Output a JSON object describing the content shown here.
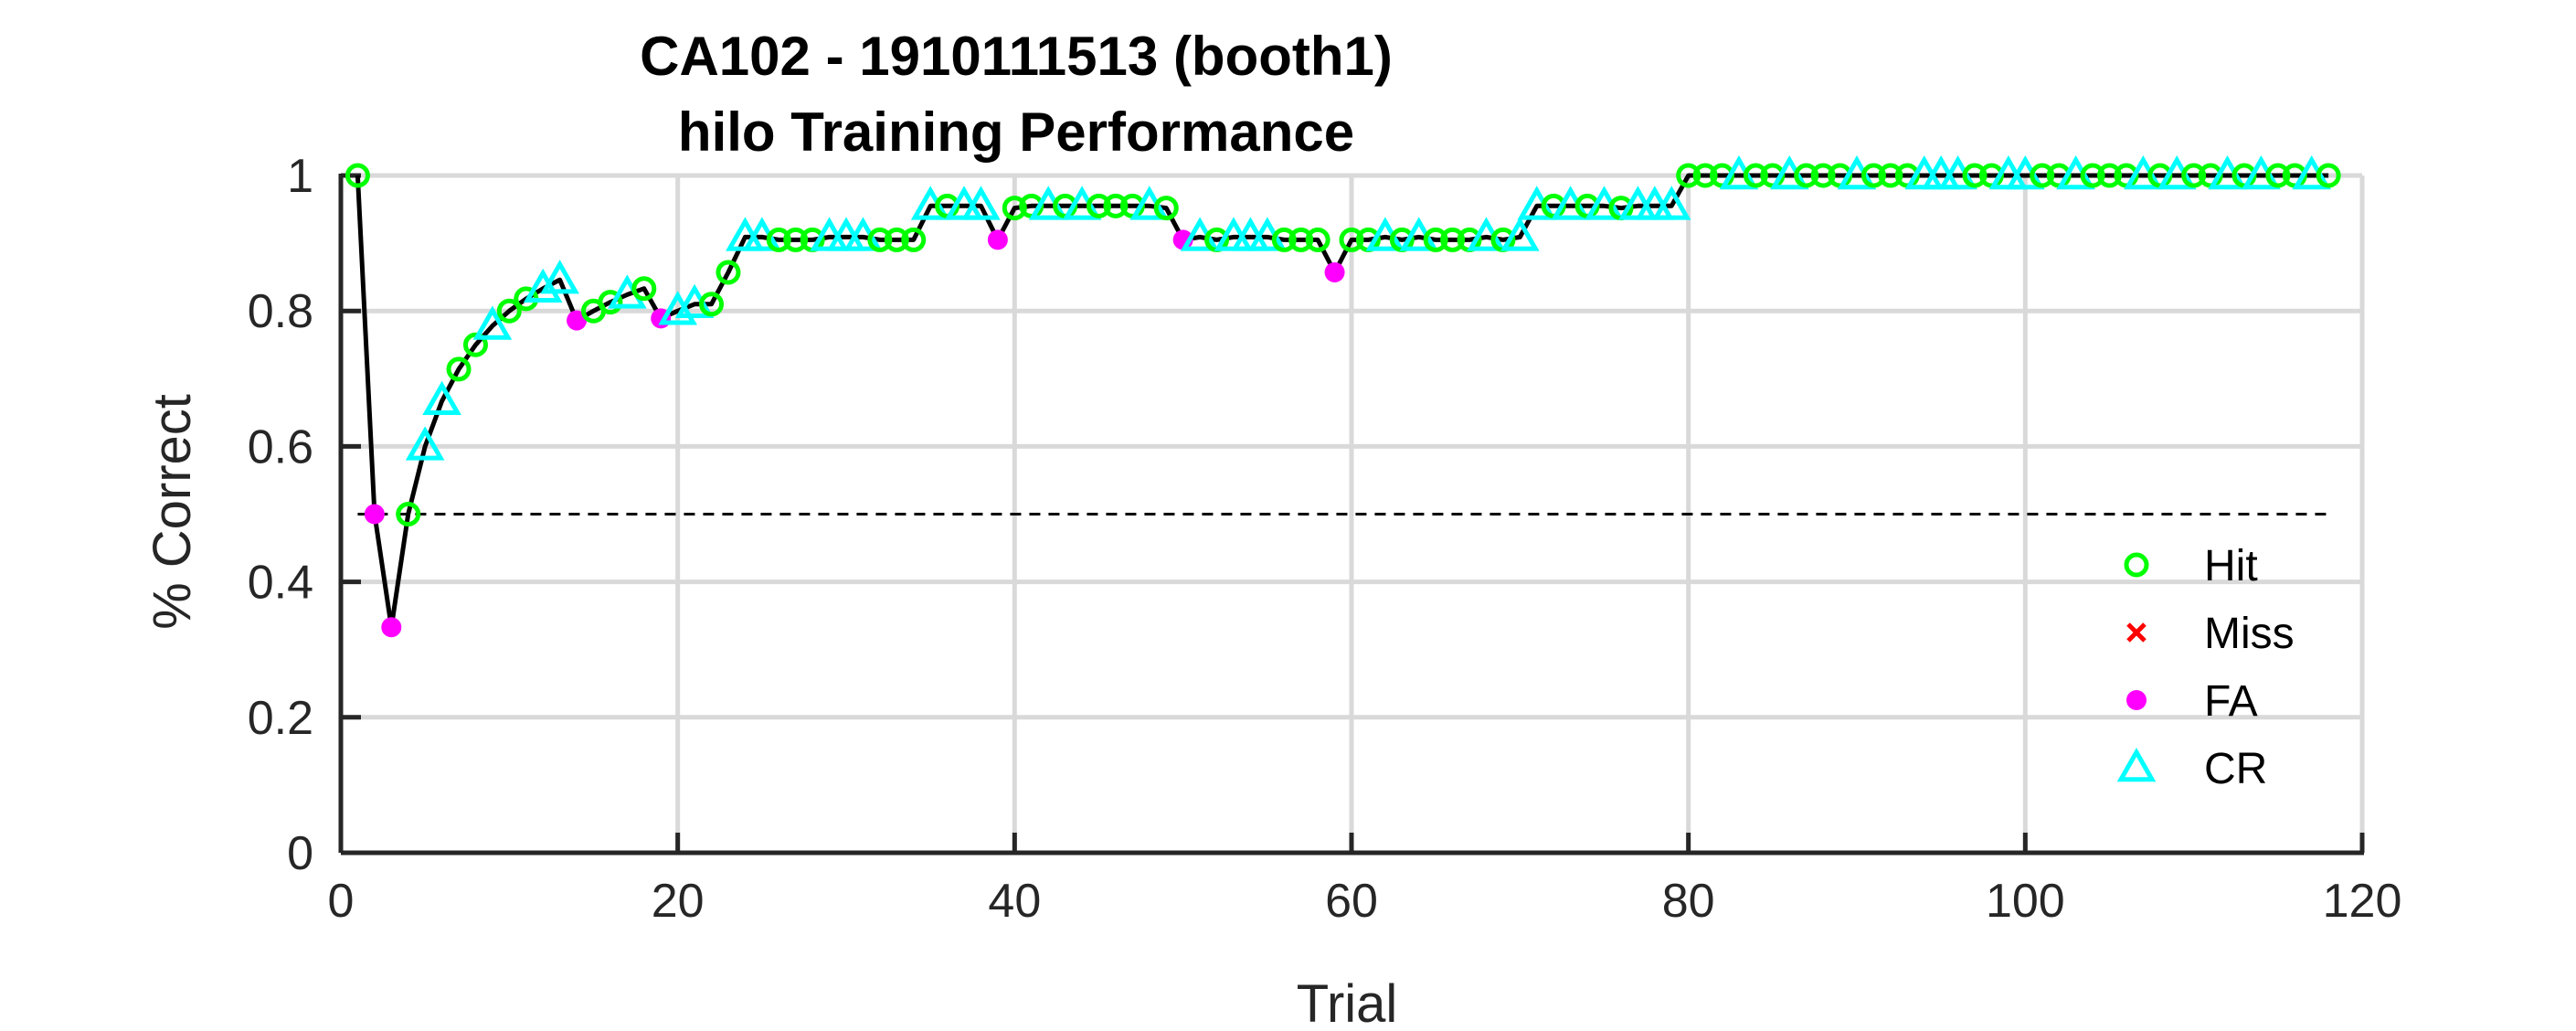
{
  "chart_data": {
    "type": "line",
    "title": "CA102 - 1910111513 (booth1)",
    "subtitle": "hilo Training Performance",
    "xlabel": "Trial",
    "ylabel": "% Correct",
    "xlim": [
      0,
      120
    ],
    "ylim": [
      0,
      1
    ],
    "xticks": [
      "0",
      "20",
      "40",
      "60",
      "80",
      "100",
      "120"
    ],
    "yticks": [
      "0",
      "0.2",
      "0.4",
      "0.6",
      "0.8",
      "1"
    ],
    "grid": true,
    "legend_position": "bottom-right",
    "chance_level": 0.5,
    "colors": {
      "line": "#000000",
      "hit": "#00ff00",
      "miss": "#ff0000",
      "fa": "#ff00ff",
      "cr": "#00ffff",
      "grid": "#d9d9d9",
      "axis": "#262626"
    },
    "legend": [
      {
        "label": "Hit",
        "marker": "circle-open"
      },
      {
        "label": "Miss",
        "marker": "x"
      },
      {
        "label": "FA",
        "marker": "dot"
      },
      {
        "label": "CR",
        "marker": "triangle-open"
      }
    ],
    "trials": [
      {
        "x": 1,
        "y": 1.0,
        "o": "hit"
      },
      {
        "x": 2,
        "y": 0.5,
        "o": "fa"
      },
      {
        "x": 3,
        "y": 0.333,
        "o": "fa"
      },
      {
        "x": 4,
        "y": 0.5,
        "o": "hit"
      },
      {
        "x": 5,
        "y": 0.6,
        "o": "cr"
      },
      {
        "x": 6,
        "y": 0.667,
        "o": "cr"
      },
      {
        "x": 7,
        "y": 0.714,
        "o": "hit"
      },
      {
        "x": 8,
        "y": 0.75,
        "o": "hit"
      },
      {
        "x": 9,
        "y": 0.778,
        "o": "cr"
      },
      {
        "x": 10,
        "y": 0.8,
        "o": "hit"
      },
      {
        "x": 11,
        "y": 0.818,
        "o": "hit"
      },
      {
        "x": 12,
        "y": 0.833,
        "o": "cr"
      },
      {
        "x": 13,
        "y": 0.846,
        "o": "cr"
      },
      {
        "x": 14,
        "y": 0.786,
        "o": "fa"
      },
      {
        "x": 15,
        "y": 0.8,
        "o": "hit"
      },
      {
        "x": 16,
        "y": 0.813,
        "o": "hit"
      },
      {
        "x": 17,
        "y": 0.824,
        "o": "cr"
      },
      {
        "x": 18,
        "y": 0.833,
        "o": "hit"
      },
      {
        "x": 19,
        "y": 0.789,
        "o": "fa"
      },
      {
        "x": 20,
        "y": 0.8,
        "o": "cr"
      },
      {
        "x": 21,
        "y": 0.81,
        "o": "cr"
      },
      {
        "x": 22,
        "y": 0.81,
        "o": "hit"
      },
      {
        "x": 23,
        "y": 0.857,
        "o": "hit"
      },
      {
        "x": 24,
        "y": 0.909,
        "o": "cr"
      },
      {
        "x": 25,
        "y": 0.909,
        "o": "cr"
      },
      {
        "x": 26,
        "y": 0.905,
        "o": "hit"
      },
      {
        "x": 27,
        "y": 0.905,
        "o": "hit"
      },
      {
        "x": 28,
        "y": 0.905,
        "o": "hit"
      },
      {
        "x": 29,
        "y": 0.909,
        "o": "cr"
      },
      {
        "x": 30,
        "y": 0.909,
        "o": "cr"
      },
      {
        "x": 31,
        "y": 0.909,
        "o": "cr"
      },
      {
        "x": 32,
        "y": 0.905,
        "o": "hit"
      },
      {
        "x": 33,
        "y": 0.905,
        "o": "hit"
      },
      {
        "x": 34,
        "y": 0.905,
        "o": "hit"
      },
      {
        "x": 35,
        "y": 0.955,
        "o": "cr"
      },
      {
        "x": 36,
        "y": 0.955,
        "o": "hit"
      },
      {
        "x": 37,
        "y": 0.955,
        "o": "cr"
      },
      {
        "x": 38,
        "y": 0.955,
        "o": "cr"
      },
      {
        "x": 39,
        "y": 0.905,
        "o": "fa"
      },
      {
        "x": 40,
        "y": 0.952,
        "o": "hit"
      },
      {
        "x": 41,
        "y": 0.955,
        "o": "hit"
      },
      {
        "x": 42,
        "y": 0.955,
        "o": "cr"
      },
      {
        "x": 43,
        "y": 0.955,
        "o": "hit"
      },
      {
        "x": 44,
        "y": 0.955,
        "o": "cr"
      },
      {
        "x": 45,
        "y": 0.955,
        "o": "hit"
      },
      {
        "x": 46,
        "y": 0.955,
        "o": "hit"
      },
      {
        "x": 47,
        "y": 0.955,
        "o": "hit"
      },
      {
        "x": 48,
        "y": 0.955,
        "o": "cr"
      },
      {
        "x": 49,
        "y": 0.952,
        "o": "hit"
      },
      {
        "x": 50,
        "y": 0.905,
        "o": "fa"
      },
      {
        "x": 51,
        "y": 0.909,
        "o": "cr"
      },
      {
        "x": 52,
        "y": 0.905,
        "o": "hit"
      },
      {
        "x": 53,
        "y": 0.909,
        "o": "cr"
      },
      {
        "x": 54,
        "y": 0.909,
        "o": "cr"
      },
      {
        "x": 55,
        "y": 0.909,
        "o": "cr"
      },
      {
        "x": 56,
        "y": 0.905,
        "o": "hit"
      },
      {
        "x": 57,
        "y": 0.905,
        "o": "hit"
      },
      {
        "x": 58,
        "y": 0.905,
        "o": "hit"
      },
      {
        "x": 59,
        "y": 0.857,
        "o": "fa"
      },
      {
        "x": 60,
        "y": 0.905,
        "o": "hit"
      },
      {
        "x": 61,
        "y": 0.905,
        "o": "hit"
      },
      {
        "x": 62,
        "y": 0.909,
        "o": "cr"
      },
      {
        "x": 63,
        "y": 0.905,
        "o": "hit"
      },
      {
        "x": 64,
        "y": 0.909,
        "o": "cr"
      },
      {
        "x": 65,
        "y": 0.905,
        "o": "hit"
      },
      {
        "x": 66,
        "y": 0.905,
        "o": "hit"
      },
      {
        "x": 67,
        "y": 0.905,
        "o": "hit"
      },
      {
        "x": 68,
        "y": 0.909,
        "o": "cr"
      },
      {
        "x": 69,
        "y": 0.905,
        "o": "hit"
      },
      {
        "x": 70,
        "y": 0.909,
        "o": "cr"
      },
      {
        "x": 71,
        "y": 0.955,
        "o": "cr"
      },
      {
        "x": 72,
        "y": 0.955,
        "o": "hit"
      },
      {
        "x": 73,
        "y": 0.955,
        "o": "cr"
      },
      {
        "x": 74,
        "y": 0.955,
        "o": "hit"
      },
      {
        "x": 75,
        "y": 0.955,
        "o": "cr"
      },
      {
        "x": 76,
        "y": 0.952,
        "o": "hit"
      },
      {
        "x": 77,
        "y": 0.955,
        "o": "cr"
      },
      {
        "x": 78,
        "y": 0.955,
        "o": "cr"
      },
      {
        "x": 79,
        "y": 0.955,
        "o": "cr"
      },
      {
        "x": 80,
        "y": 1.0,
        "o": "hit"
      },
      {
        "x": 81,
        "y": 1.0,
        "o": "hit"
      },
      {
        "x": 82,
        "y": 1.0,
        "o": "hit"
      },
      {
        "x": 83,
        "y": 1.0,
        "o": "cr"
      },
      {
        "x": 84,
        "y": 1.0,
        "o": "hit"
      },
      {
        "x": 85,
        "y": 1.0,
        "o": "hit"
      },
      {
        "x": 86,
        "y": 1.0,
        "o": "cr"
      },
      {
        "x": 87,
        "y": 1.0,
        "o": "hit"
      },
      {
        "x": 88,
        "y": 1.0,
        "o": "hit"
      },
      {
        "x": 89,
        "y": 1.0,
        "o": "hit"
      },
      {
        "x": 90,
        "y": 1.0,
        "o": "cr"
      },
      {
        "x": 91,
        "y": 1.0,
        "o": "hit"
      },
      {
        "x": 92,
        "y": 1.0,
        "o": "hit"
      },
      {
        "x": 93,
        "y": 1.0,
        "o": "hit"
      },
      {
        "x": 94,
        "y": 1.0,
        "o": "cr"
      },
      {
        "x": 95,
        "y": 1.0,
        "o": "cr"
      },
      {
        "x": 96,
        "y": 1.0,
        "o": "cr"
      },
      {
        "x": 97,
        "y": 1.0,
        "o": "hit"
      },
      {
        "x": 98,
        "y": 1.0,
        "o": "hit"
      },
      {
        "x": 99,
        "y": 1.0,
        "o": "cr"
      },
      {
        "x": 100,
        "y": 1.0,
        "o": "cr"
      },
      {
        "x": 101,
        "y": 1.0,
        "o": "hit"
      },
      {
        "x": 102,
        "y": 1.0,
        "o": "hit"
      },
      {
        "x": 103,
        "y": 1.0,
        "o": "cr"
      },
      {
        "x": 104,
        "y": 1.0,
        "o": "hit"
      },
      {
        "x": 105,
        "y": 1.0,
        "o": "hit"
      },
      {
        "x": 106,
        "y": 1.0,
        "o": "hit"
      },
      {
        "x": 107,
        "y": 1.0,
        "o": "cr"
      },
      {
        "x": 108,
        "y": 1.0,
        "o": "hit"
      },
      {
        "x": 109,
        "y": 1.0,
        "o": "cr"
      },
      {
        "x": 110,
        "y": 1.0,
        "o": "hit"
      },
      {
        "x": 111,
        "y": 1.0,
        "o": "hit"
      },
      {
        "x": 112,
        "y": 1.0,
        "o": "cr"
      },
      {
        "x": 113,
        "y": 1.0,
        "o": "hit"
      },
      {
        "x": 114,
        "y": 1.0,
        "o": "cr"
      },
      {
        "x": 115,
        "y": 1.0,
        "o": "hit"
      },
      {
        "x": 116,
        "y": 1.0,
        "o": "hit"
      },
      {
        "x": 117,
        "y": 1.0,
        "o": "cr"
      },
      {
        "x": 118,
        "y": 1.0,
        "o": "hit"
      }
    ]
  }
}
